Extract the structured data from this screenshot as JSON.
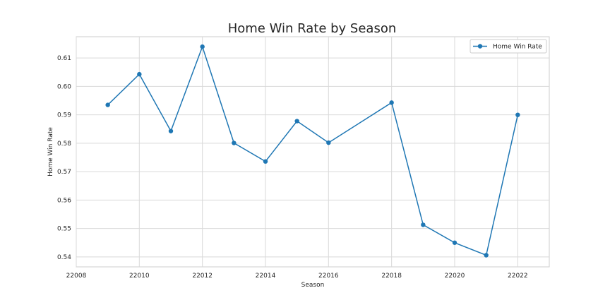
{
  "chart_data": {
    "type": "line",
    "title": "Home Win Rate by Season",
    "xlabel": "Season",
    "ylabel": "Home Win Rate",
    "xlim": [
      22008,
      22023
    ],
    "ylim": [
      0.5365,
      0.6175
    ],
    "x_ticks": [
      22008,
      22010,
      22012,
      22014,
      22016,
      22018,
      22020,
      22022
    ],
    "y_ticks": [
      0.54,
      0.55,
      0.56,
      0.57,
      0.58,
      0.59,
      0.6,
      0.61
    ],
    "x_tick_labels": [
      "22008",
      "22010",
      "22012",
      "22014",
      "22016",
      "22018",
      "22020",
      "22022"
    ],
    "y_tick_labels": [
      "0.54",
      "0.55",
      "0.56",
      "0.57",
      "0.58",
      "0.59",
      "0.60",
      "0.61"
    ],
    "grid": true,
    "legend_position": "top-right",
    "series": [
      {
        "name": "Home Win Rate",
        "color": "#1f77b4",
        "x": [
          22009,
          22010,
          22011,
          22012,
          22013,
          22014,
          22015,
          22016,
          22018,
          22019,
          22020,
          22021,
          22022
        ],
        "y": [
          0.5935,
          0.6043,
          0.5843,
          0.614,
          0.5801,
          0.5736,
          0.5878,
          0.5802,
          0.5943,
          0.5513,
          0.545,
          0.5406,
          0.59
        ]
      }
    ]
  }
}
